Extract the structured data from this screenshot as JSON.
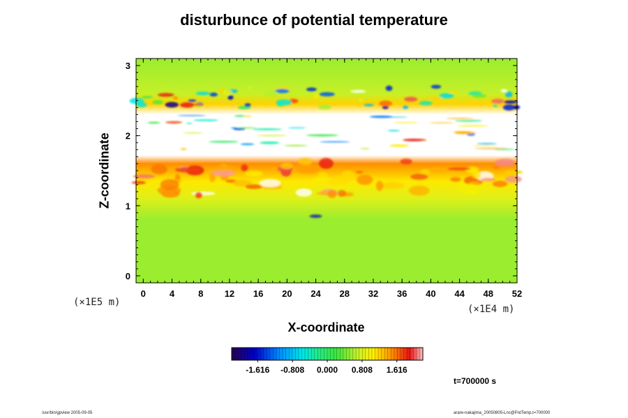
{
  "chart_data": {
    "type": "heatmap",
    "title": "disturbunce of potential temperature",
    "xlabel": "X-coordinate",
    "ylabel": "Z-coordinate",
    "x_unit": "(×1E4 m)",
    "y_unit": "(×1E5 m)",
    "xlim": [
      -1,
      52
    ],
    "ylim": [
      -0.1,
      3.1
    ],
    "x_ticks": [
      0,
      4,
      8,
      12,
      16,
      20,
      24,
      28,
      32,
      36,
      40,
      44,
      48,
      52
    ],
    "y_ticks": [
      0,
      1,
      2,
      3
    ],
    "colorbar": {
      "ticks": [
        -1.616,
        -0.808,
        0.0,
        0.808,
        1.616
      ],
      "tick_labels": [
        "-1.616",
        "-0.808",
        "0.000",
        "0.808",
        "1.616"
      ],
      "range": [
        -2.22,
        2.22
      ]
    },
    "time_label": "t=700000 s",
    "field_description_rows": [
      {
        "z": 0.0,
        "value": 0.55
      },
      {
        "z": 0.8,
        "value": 0.55
      },
      {
        "z": 1.1,
        "value": 0.85
      },
      {
        "z": 1.35,
        "value": 1.1
      },
      {
        "z": 1.6,
        "value": 1.5
      },
      {
        "z": 1.72,
        "value": 2.3
      },
      {
        "z": 1.8,
        "value": 2.6
      },
      {
        "z": 2.3,
        "value": 2.6
      },
      {
        "z": 2.45,
        "value": 1.2
      },
      {
        "z": 2.6,
        "value": 0.7
      },
      {
        "z": 3.1,
        "value": 0.55
      }
    ]
  },
  "footer": {
    "left": "/usr/bin/gpview 2005-09-05",
    "right": "arare-nakajima_20050805-Lnc@PotTemp,t=700000"
  },
  "colors": {
    "background": "#ffffff",
    "axis": "#000000",
    "saturated": "#ffffff"
  }
}
